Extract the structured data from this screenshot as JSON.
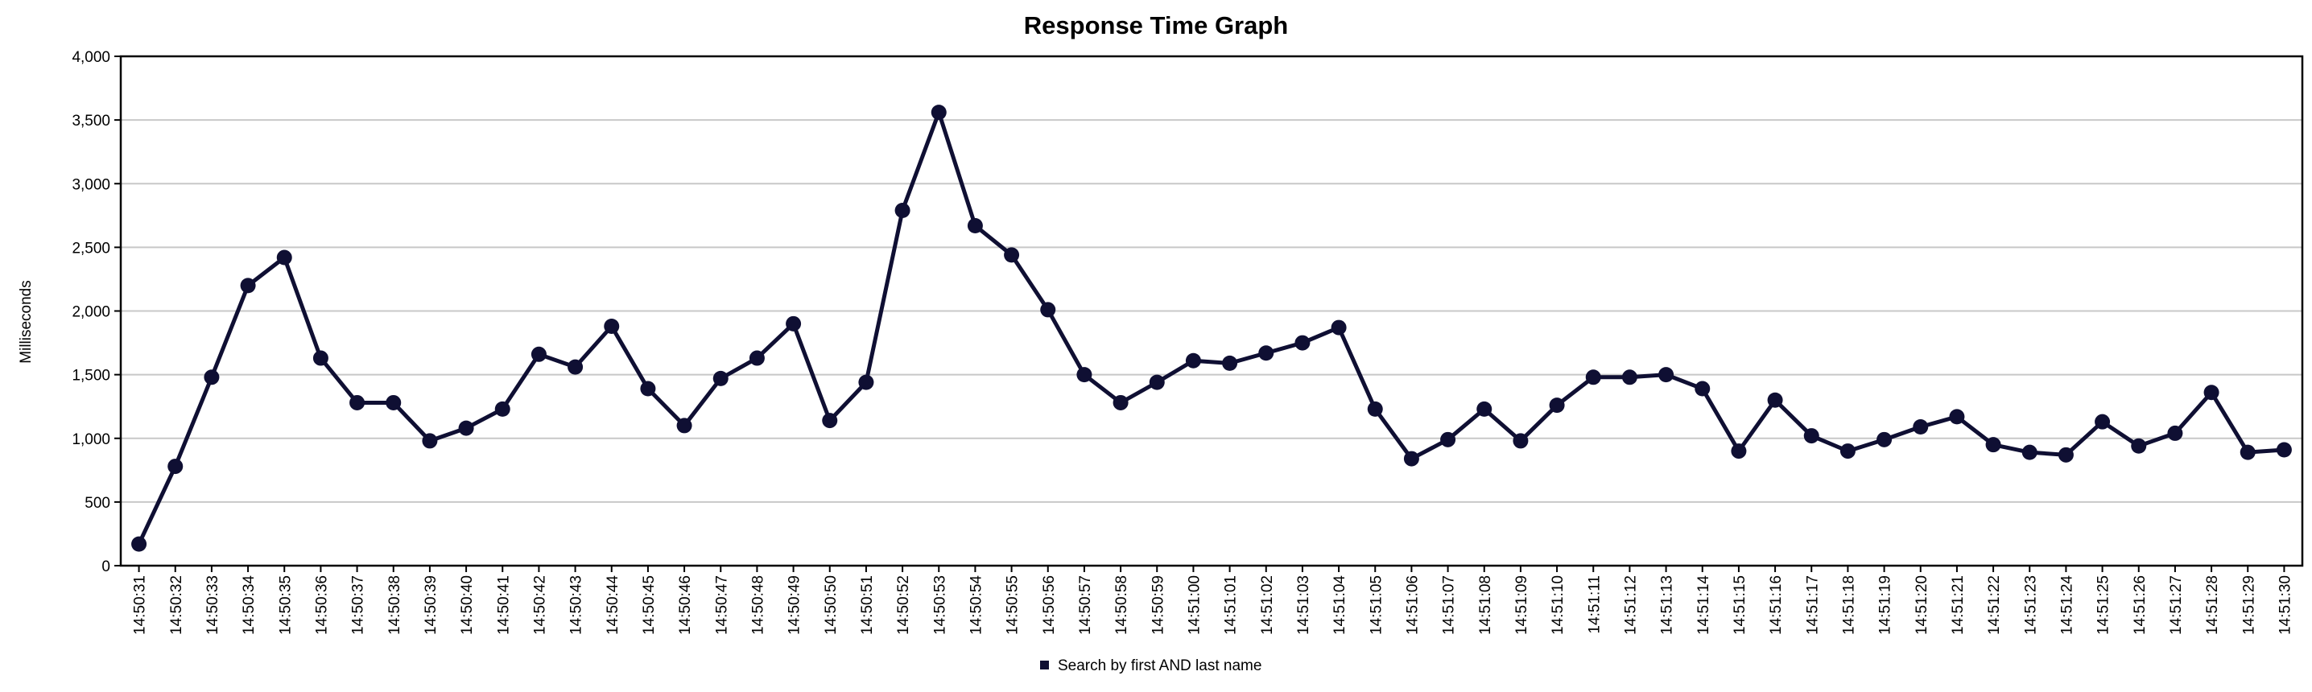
{
  "chart_data": {
    "type": "line",
    "title": "Response Time Graph",
    "xlabel": "",
    "ylabel": "Milliseconds",
    "ylim": [
      0,
      4000
    ],
    "yticks": [
      0,
      500,
      1000,
      1500,
      2000,
      2500,
      3000,
      3500,
      4000
    ],
    "ytick_labels": [
      "0",
      "500",
      "1,000",
      "1,500",
      "2,000",
      "2,500",
      "3,000",
      "3,500",
      "4,000"
    ],
    "grid": true,
    "legend_position": "bottom",
    "categories": [
      "14:50:31",
      "14:50:32",
      "14:50:33",
      "14:50:34",
      "14:50:35",
      "14:50:36",
      "14:50:37",
      "14:50:38",
      "14:50:39",
      "14:50:40",
      "14:50:41",
      "14:50:42",
      "14:50:43",
      "14:50:44",
      "14:50:45",
      "14:50:46",
      "14:50:47",
      "14:50:48",
      "14:50:49",
      "14:50:50",
      "14:50:51",
      "14:50:52",
      "14:50:53",
      "14:50:54",
      "14:50:55",
      "14:50:56",
      "14:50:57",
      "14:50:58",
      "14:50:59",
      "14:51:00",
      "14:51:01",
      "14:51:02",
      "14:51:03",
      "14:51:04",
      "14:51:05",
      "14:51:06",
      "14:51:07",
      "14:51:08",
      "14:51:09",
      "14:51:10",
      "14:51:11",
      "14:51:12",
      "14:51:13",
      "14:51:14",
      "14:51:15",
      "14:51:16",
      "14:51:17",
      "14:51:18",
      "14:51:19",
      "14:51:20",
      "14:51:21",
      "14:51:22",
      "14:51:23",
      "14:51:24",
      "14:51:25",
      "14:51:26",
      "14:51:27",
      "14:51:28",
      "14:51:29",
      "14:51:30"
    ],
    "series": [
      {
        "name": "Search by first AND last name",
        "color": "#0f0f33",
        "values": [
          170,
          780,
          1480,
          2200,
          2420,
          1630,
          1280,
          1280,
          980,
          1080,
          1230,
          1660,
          1560,
          1880,
          1390,
          1100,
          1470,
          1630,
          1900,
          1140,
          1440,
          2790,
          3560,
          2670,
          2440,
          2010,
          1500,
          1280,
          1440,
          1610,
          1590,
          1670,
          1750,
          1870,
          1230,
          840,
          990,
          1230,
          980,
          1260,
          1480,
          1480,
          1500,
          1390,
          900,
          1300,
          1020,
          900,
          990,
          1090,
          1170,
          950,
          890,
          870,
          1130,
          940,
          1040,
          1360,
          890,
          910
        ]
      }
    ]
  }
}
